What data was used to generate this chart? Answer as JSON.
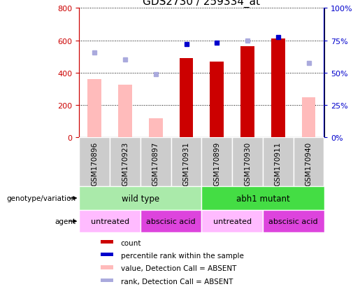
{
  "title": "GDS2730 / 259334_at",
  "samples": [
    "GSM170896",
    "GSM170923",
    "GSM170897",
    "GSM170931",
    "GSM170899",
    "GSM170930",
    "GSM170911",
    "GSM170940"
  ],
  "count_values": [
    null,
    null,
    null,
    490,
    470,
    565,
    610,
    null
  ],
  "count_absent": [
    360,
    325,
    120,
    null,
    null,
    null,
    null,
    250
  ],
  "rank_values": [
    null,
    null,
    null,
    575,
    585,
    null,
    620,
    null
  ],
  "rank_absent": [
    525,
    480,
    390,
    null,
    null,
    600,
    null,
    460
  ],
  "left_ylim": [
    0,
    800
  ],
  "right_ylim": [
    0,
    100
  ],
  "left_yticks": [
    0,
    200,
    400,
    600,
    800
  ],
  "right_yticks": [
    0,
    25,
    50,
    75,
    100
  ],
  "right_yticklabels": [
    "0%",
    "25%",
    "50%",
    "75%",
    "100%"
  ],
  "bar_width": 0.45,
  "count_color": "#cc0000",
  "count_absent_color": "#ffbbbb",
  "rank_color": "#0000cc",
  "rank_absent_color": "#aaaadd",
  "title_fontsize": 11,
  "genotype_groups": [
    {
      "label": "wild type",
      "start": 0,
      "end": 4,
      "color": "#aaeaaa"
    },
    {
      "label": "abh1 mutant",
      "start": 4,
      "end": 8,
      "color": "#44dd44"
    }
  ],
  "agent_groups": [
    {
      "label": "untreated",
      "start": 0,
      "end": 2,
      "color": "#ffbbff"
    },
    {
      "label": "abscisic acid",
      "start": 2,
      "end": 4,
      "color": "#dd44dd"
    },
    {
      "label": "untreated",
      "start": 4,
      "end": 6,
      "color": "#ffbbff"
    },
    {
      "label": "abscisic acid",
      "start": 6,
      "end": 8,
      "color": "#dd44dd"
    }
  ],
  "legend_items": [
    {
      "label": "count",
      "color": "#cc0000"
    },
    {
      "label": "percentile rank within the sample",
      "color": "#0000cc"
    },
    {
      "label": "value, Detection Call = ABSENT",
      "color": "#ffbbbb"
    },
    {
      "label": "rank, Detection Call = ABSENT",
      "color": "#aaaadd"
    }
  ],
  "sample_bg_color": "#cccccc",
  "left_label_color": "#000000"
}
